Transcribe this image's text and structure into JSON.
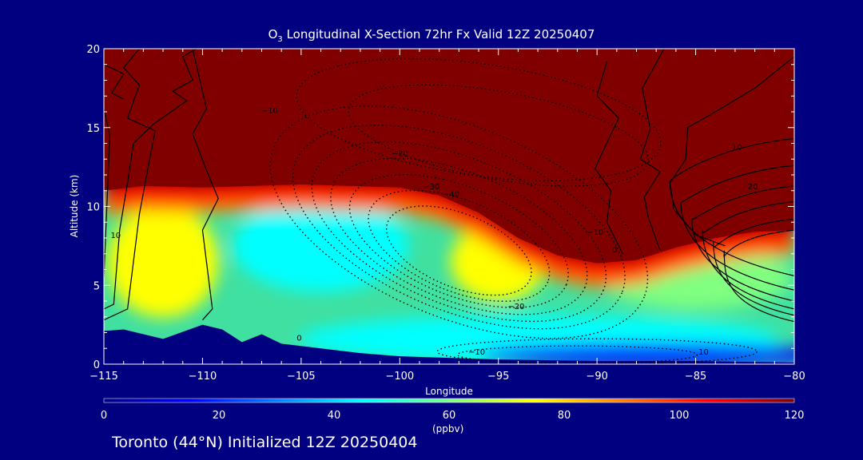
{
  "chart_data": {
    "type": "heatmap",
    "title_prefix": "O",
    "title_sub": "3",
    "title_rest": " Longitudinal X-Section 72hr  Fx Valid 12Z 20250407",
    "xlabel": "Longitude",
    "ylabel": "Altitude (km)",
    "xlim": [
      -115,
      -80
    ],
    "ylim": [
      0,
      20
    ],
    "x_ticks": [
      -115,
      -110,
      -105,
      -100,
      -95,
      -90,
      -85,
      -80
    ],
    "x_tick_labels": [
      "−115",
      "−110",
      "−105",
      "−100",
      "−95",
      "−90",
      "−85",
      "−80"
    ],
    "y_ticks": [
      0,
      5,
      10,
      15,
      20
    ],
    "y_tick_labels": [
      "0",
      "5",
      "10",
      "15",
      "20"
    ],
    "colorbar": {
      "label": "(ppbv)",
      "range": [
        0,
        120
      ],
      "ticks": [
        0,
        20,
        40,
        60,
        80,
        100,
        120
      ],
      "tick_labels": [
        "0",
        "20",
        "40",
        "60",
        "80",
        "100",
        "120"
      ],
      "colors": [
        "#000080",
        "#0000ff",
        "#0080ff",
        "#00ffff",
        "#80ff80",
        "#ffff00",
        "#ff8000",
        "#ff0000",
        "#800000"
      ]
    },
    "high_ozone_boundary_km": [
      [
        -115,
        11.0
      ],
      [
        -113,
        11.3
      ],
      [
        -110,
        11.2
      ],
      [
        -105,
        11.4
      ],
      [
        -100,
        11.2
      ],
      [
        -98,
        10.7
      ],
      [
        -96,
        9.6
      ],
      [
        -94,
        8.0
      ],
      [
        -92,
        6.9
      ],
      [
        -90,
        6.4
      ],
      [
        -88,
        6.6
      ],
      [
        -86,
        7.4
      ],
      [
        -84,
        8.0
      ],
      [
        -82,
        8.4
      ],
      [
        -80,
        8.5
      ]
    ],
    "low_ozone_core": {
      "center": [
        -104,
        7.5
      ],
      "min_ppbv": 40
    },
    "terrain_km": [
      [
        -115,
        2.1
      ],
      [
        -114,
        2.2
      ],
      [
        -112,
        1.6
      ],
      [
        -110,
        2.5
      ],
      [
        -109,
        2.2
      ],
      [
        -108,
        1.4
      ],
      [
        -107,
        1.9
      ],
      [
        -106,
        1.3
      ],
      [
        -104,
        1.0
      ],
      [
        -102,
        0.7
      ],
      [
        -100,
        0.5
      ],
      [
        -95,
        0.3
      ],
      [
        -90,
        0.2
      ],
      [
        -85,
        0.2
      ],
      [
        -80,
        0.1
      ]
    ],
    "contour_labels": [
      {
        "text": "−10",
        "x": -106.6,
        "y": 15.9
      },
      {
        "text": "−20",
        "x": -100.0,
        "y": 13.2
      },
      {
        "text": "−30",
        "x": -98.4,
        "y": 11.1
      },
      {
        "text": "−40",
        "x": -97.4,
        "y": 10.6
      },
      {
        "text": "−20",
        "x": -94.1,
        "y": 3.5
      },
      {
        "text": "−10",
        "x": -96.1,
        "y": 0.6
      },
      {
        "text": "−10",
        "x": -90.1,
        "y": 8.2
      },
      {
        "text": "0",
        "x": -89.1,
        "y": 7.1
      },
      {
        "text": "0",
        "x": -105.1,
        "y": 1.5
      },
      {
        "text": "10",
        "x": -114.4,
        "y": 8.0
      },
      {
        "text": "10",
        "x": -82.9,
        "y": 13.6
      },
      {
        "text": "20",
        "x": -82.1,
        "y": 11.1
      },
      {
        "text": "10",
        "x": -84.6,
        "y": 0.6
      }
    ]
  },
  "footer": "Toronto (44°N) Initialized 12Z 20250404"
}
